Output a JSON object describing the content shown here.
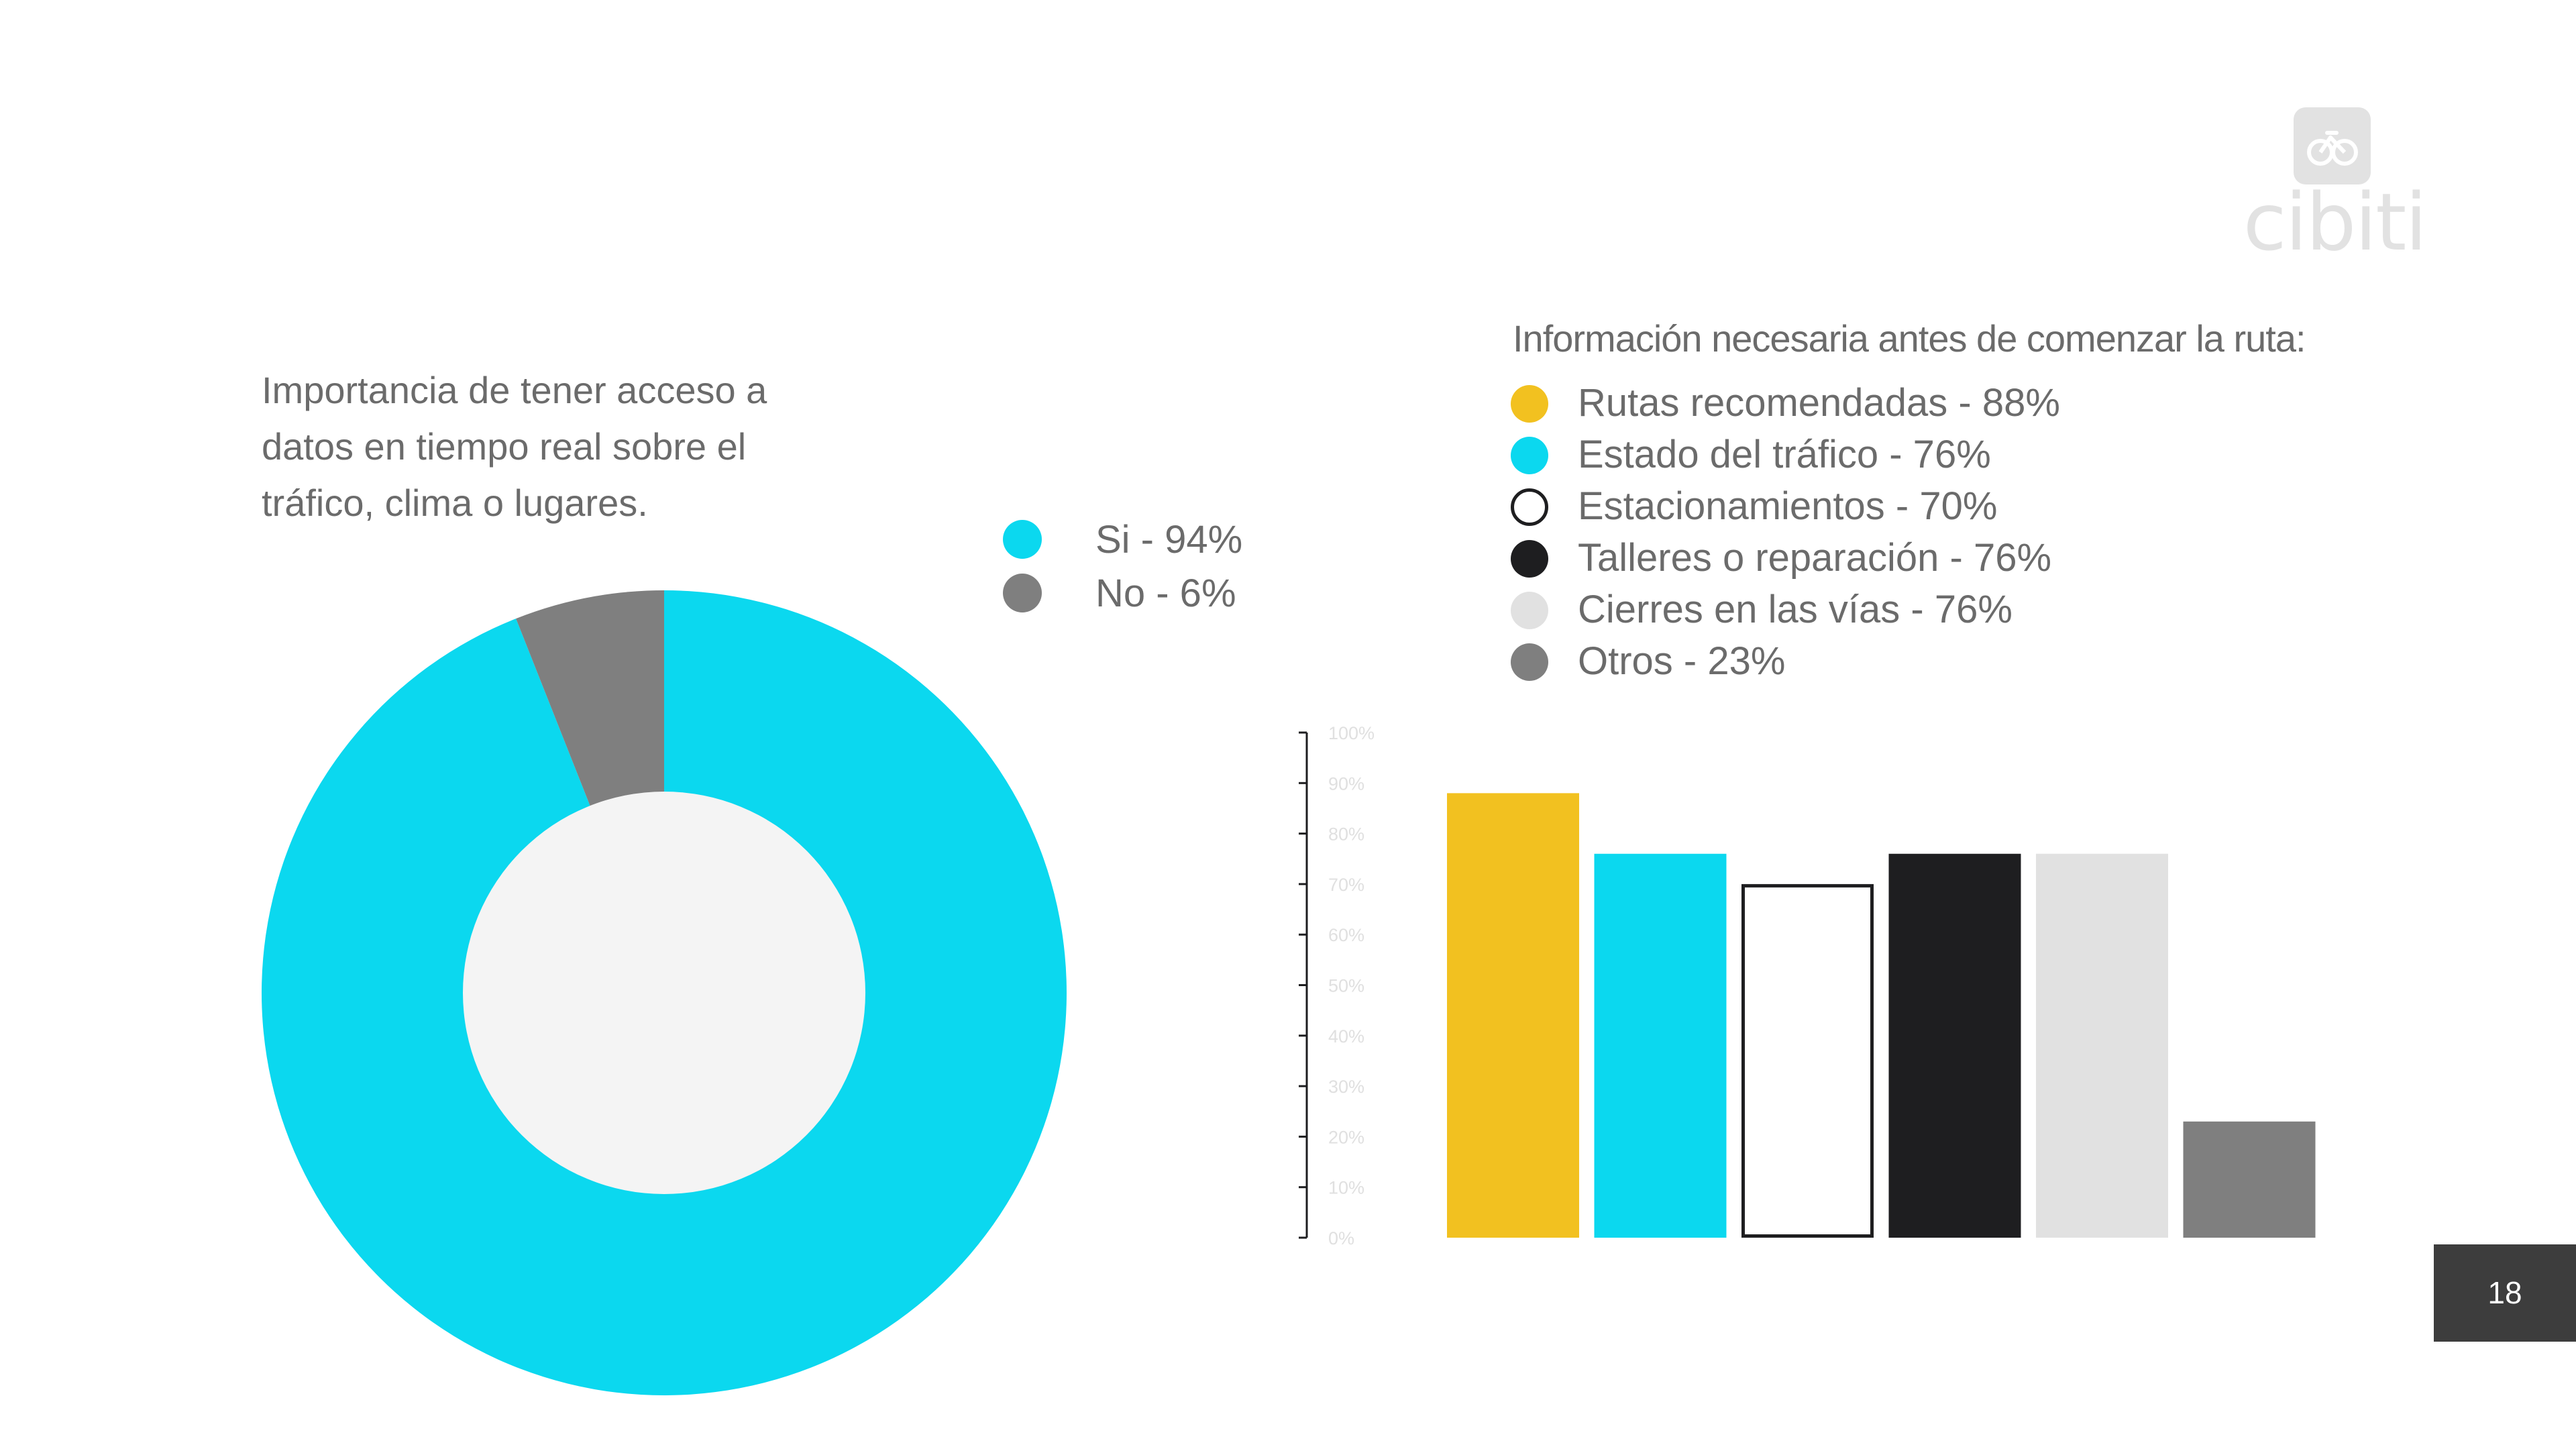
{
  "logo": {
    "text": "cibiti",
    "icon": "bicycle-icon",
    "color": "#e2e2e2"
  },
  "page_number": "18",
  "chart_data": [
    {
      "type": "pie",
      "style": "donut",
      "title": "Importancia de tener acceso a datos en tiempo real sobre el tráfico, clima o lugares.",
      "title_lines": [
        "Importancia de tener acceso a",
        "datos en tiempo real sobre el",
        "tráfico, clima o lugares."
      ],
      "categories": [
        "Si",
        "No"
      ],
      "values": [
        94,
        6
      ],
      "legend": [
        "Si - 94%",
        "No - 6%"
      ],
      "colors": [
        "#0bd8ef",
        "#7f7f7f"
      ],
      "center_color": "#f4f4f4",
      "legend_position": "right"
    },
    {
      "type": "bar",
      "title": "Información necesaria antes de comenzar la ruta:",
      "categories": [
        "Rutas recomendadas",
        "Estado del tráfico",
        "Estacionamientos",
        "Talleres o reparación",
        "Cierres en las vías",
        "Otros"
      ],
      "values": [
        88,
        76,
        70,
        76,
        76,
        23
      ],
      "legend": [
        "Rutas recomendadas - 88%",
        "Estado del tráfico - 76%",
        "Estacionamientos - 70%",
        "Talleres o reparación - 76%",
        "Cierres en las vías - 76%",
        "Otros - 23%"
      ],
      "colors": [
        "#f2c120",
        "#0bd8ef",
        "#ffffff",
        "#1e1e20",
        "#e1e1e1",
        "#7f7f7f"
      ],
      "outline_color": "#1e1e20",
      "yticks": [
        "0%",
        "10%",
        "20%",
        "30%",
        "40%",
        "50%",
        "60%",
        "70%",
        "80%",
        "90%",
        "100%"
      ],
      "ylim": [
        0,
        100
      ],
      "grid": false,
      "legend_position": "top"
    }
  ]
}
